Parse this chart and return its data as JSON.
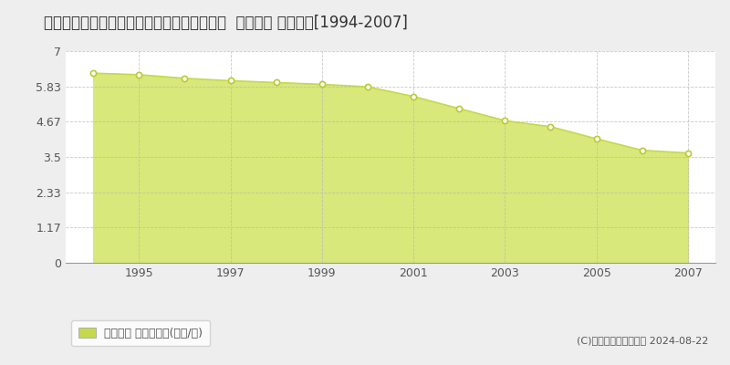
{
  "title": "北海道帯広市西２３条北１丁目１８番１８外  地価公示 地価推移[1994-2007]",
  "years": [
    1994,
    1995,
    1996,
    1997,
    1998,
    1999,
    2000,
    2001,
    2002,
    2003,
    2004,
    2005,
    2006,
    2007
  ],
  "values": [
    6.27,
    6.22,
    6.1,
    6.02,
    5.96,
    5.9,
    5.82,
    5.5,
    5.1,
    4.7,
    4.5,
    4.1,
    3.72,
    3.63
  ],
  "yticks": [
    0,
    1.17,
    2.33,
    3.5,
    4.67,
    5.83,
    7
  ],
  "ylim": [
    0,
    7
  ],
  "xlim": [
    1993.4,
    2007.6
  ],
  "line_color": "#c5d94e",
  "fill_color": "#d8e87a",
  "fill_alpha": 1.0,
  "marker_facecolor": "#ffffff",
  "marker_edgecolor": "#b8cc30",
  "background_color": "#eeeeee",
  "plot_bg_color": "#ffffff",
  "grid_color": "#bbbbbb",
  "text_color": "#555555",
  "legend_label": "地価公示 平均坪単価(万円/坪)",
  "legend_marker_color": "#c5d94e",
  "copyright_text": "(C)土地価格ドットコム 2024-08-22",
  "xtick_years": [
    1995,
    1997,
    1999,
    2001,
    2003,
    2005,
    2007
  ],
  "title_fontsize": 12,
  "axis_fontsize": 9,
  "legend_fontsize": 9
}
